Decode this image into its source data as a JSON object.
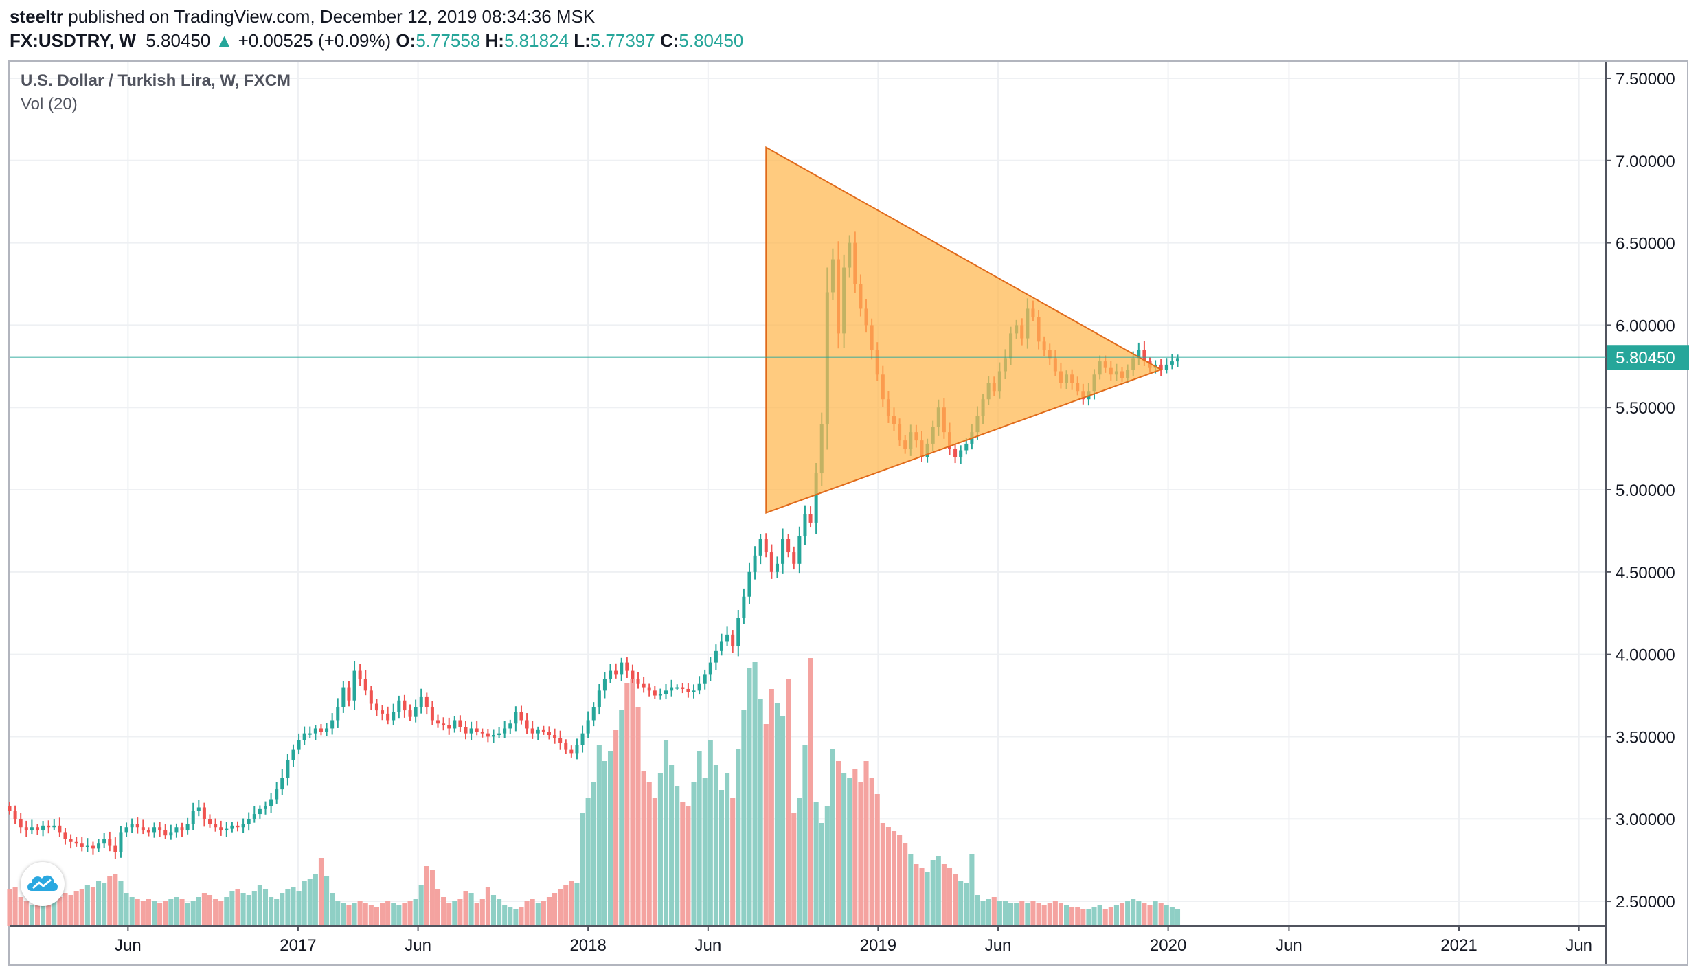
{
  "header": {
    "author": "steeltr",
    "published": " published on TradingView.com, December 12, 2019 08:34:36 MSK",
    "symbol": "FX:USDTRY, W",
    "last": "5.80450",
    "change": "+0.00525 (+0.09%)",
    "o_label": "O:",
    "o": "5.77558",
    "h_label": "H:",
    "h": "5.81824",
    "l_label": "L:",
    "l": "5.77397",
    "c_label": "C:",
    "c": "5.80450"
  },
  "legend": {
    "title": "U.S. Dollar / Turkish Lira, W, FXCM",
    "volume": "Vol (20)"
  },
  "colors": {
    "up": "#26a69a",
    "down": "#ef5350",
    "vol_up": "#8fcfc5",
    "vol_down": "#f4a3a0",
    "triangle_fill": "#ffb74d",
    "triangle_stroke": "#e06a1a",
    "price_line": "#26a69a"
  },
  "logo_icon": "tradingview-cloud-icon",
  "chart_data": {
    "type": "candlestick",
    "symbol": "FX:USDTRY",
    "interval": "W",
    "y_axis": {
      "min": 2.35,
      "max": 7.6,
      "ticks": [
        "7.50000",
        "7.00000",
        "6.50000",
        "6.00000",
        "5.50000",
        "5.00000",
        "4.50000",
        "4.00000",
        "3.50000",
        "3.00000",
        "2.50000"
      ],
      "tick_values": [
        7.5,
        7.0,
        6.5,
        6.0,
        5.5,
        5.0,
        4.5,
        4.0,
        3.5,
        3.0,
        2.5
      ],
      "last_price_label": "5.80450",
      "last_price": 5.8045
    },
    "x_axis": {
      "start": "2016-01-04",
      "end": "2021-07-05",
      "ticks": [
        {
          "label": "Jun",
          "date": "2016-06-01"
        },
        {
          "label": "2017",
          "date": "2017-01-01"
        },
        {
          "label": "Jun",
          "date": "2017-06-01"
        },
        {
          "label": "2018",
          "date": "2018-01-01"
        },
        {
          "label": "Jun",
          "date": "2018-06-01"
        },
        {
          "label": "2019",
          "date": "2019-01-01"
        },
        {
          "label": "Jun",
          "date": "2019-06-01"
        },
        {
          "label": "2020",
          "date": "2020-01-01"
        },
        {
          "label": "Jun",
          "date": "2020-06-01"
        },
        {
          "label": "2021",
          "date": "2021-01-01"
        },
        {
          "label": "Jun",
          "date": "2021-06-01"
        }
      ]
    },
    "series_start": "2016-01-04",
    "closes": [
      3.05,
      3.0,
      2.95,
      2.93,
      2.95,
      2.93,
      2.96,
      2.95,
      2.96,
      2.92,
      2.88,
      2.86,
      2.85,
      2.83,
      2.84,
      2.82,
      2.85,
      2.88,
      2.84,
      2.8,
      2.92,
      2.95,
      2.97,
      2.95,
      2.93,
      2.92,
      2.95,
      2.93,
      2.9,
      2.92,
      2.95,
      2.93,
      2.97,
      3.05,
      3.07,
      3.0,
      2.97,
      2.95,
      2.93,
      2.94,
      2.96,
      2.95,
      2.97,
      3.0,
      3.03,
      3.06,
      3.08,
      3.12,
      3.18,
      3.25,
      3.36,
      3.42,
      3.48,
      3.52,
      3.52,
      3.55,
      3.53,
      3.55,
      3.6,
      3.68,
      3.8,
      3.72,
      3.9,
      3.85,
      3.78,
      3.7,
      3.66,
      3.64,
      3.6,
      3.65,
      3.72,
      3.66,
      3.62,
      3.68,
      3.74,
      3.68,
      3.6,
      3.58,
      3.57,
      3.55,
      3.6,
      3.56,
      3.52,
      3.55,
      3.53,
      3.52,
      3.5,
      3.51,
      3.52,
      3.55,
      3.58,
      3.65,
      3.6,
      3.55,
      3.52,
      3.54,
      3.53,
      3.51,
      3.49,
      3.46,
      3.42,
      3.4,
      3.45,
      3.52,
      3.6,
      3.68,
      3.78,
      3.85,
      3.9,
      3.88,
      3.95,
      3.9,
      3.85,
      3.82,
      3.8,
      3.78,
      3.75,
      3.76,
      3.78,
      3.8,
      3.8,
      3.79,
      3.77,
      3.78,
      3.82,
      3.88,
      3.95,
      4.02,
      4.08,
      4.12,
      4.05,
      4.22,
      4.35,
      4.5,
      4.6,
      4.7,
      4.62,
      4.5,
      4.55,
      4.7,
      4.62,
      4.55,
      4.72,
      4.85,
      4.8,
      5.1,
      5.4,
      6.2,
      6.4,
      5.95,
      6.35,
      6.5,
      6.25,
      6.1,
      6.0,
      5.85,
      5.7,
      5.55,
      5.45,
      5.4,
      5.3,
      5.25,
      5.35,
      5.3,
      5.2,
      5.28,
      5.38,
      5.5,
      5.35,
      5.25,
      5.2,
      5.24,
      5.28,
      5.35,
      5.45,
      5.55,
      5.65,
      5.6,
      5.72,
      5.8,
      5.95,
      6.0,
      5.92,
      6.1,
      6.05,
      5.9,
      5.85,
      5.8,
      5.72,
      5.65,
      5.7,
      5.65,
      5.6,
      5.55,
      5.6,
      5.7,
      5.78,
      5.74,
      5.7,
      5.72,
      5.68,
      5.73,
      5.8,
      5.85,
      5.78,
      5.74,
      5.76,
      5.73,
      5.76,
      5.78,
      5.8
    ],
    "volume_scale": "relative",
    "volumes": [
      0.18,
      0.19,
      0.14,
      0.12,
      0.1,
      0.11,
      0.1,
      0.12,
      0.13,
      0.14,
      0.16,
      0.15,
      0.17,
      0.18,
      0.2,
      0.19,
      0.22,
      0.21,
      0.24,
      0.25,
      0.22,
      0.16,
      0.14,
      0.13,
      0.12,
      0.13,
      0.12,
      0.11,
      0.12,
      0.13,
      0.14,
      0.13,
      0.11,
      0.12,
      0.14,
      0.16,
      0.15,
      0.13,
      0.12,
      0.14,
      0.17,
      0.18,
      0.16,
      0.15,
      0.17,
      0.2,
      0.18,
      0.14,
      0.13,
      0.16,
      0.18,
      0.19,
      0.17,
      0.22,
      0.23,
      0.25,
      0.33,
      0.24,
      0.16,
      0.12,
      0.11,
      0.1,
      0.11,
      0.12,
      0.11,
      0.1,
      0.09,
      0.11,
      0.12,
      0.11,
      0.1,
      0.11,
      0.12,
      0.13,
      0.2,
      0.29,
      0.27,
      0.18,
      0.14,
      0.11,
      0.12,
      0.13,
      0.17,
      0.16,
      0.11,
      0.13,
      0.19,
      0.15,
      0.13,
      0.1,
      0.09,
      0.08,
      0.09,
      0.12,
      0.13,
      0.11,
      0.12,
      0.14,
      0.16,
      0.18,
      0.2,
      0.22,
      0.21,
      0.55,
      0.62,
      0.7,
      0.88,
      0.8,
      0.85,
      0.95,
      1.05,
      1.18,
      1.2,
      1.06,
      0.75,
      0.7,
      0.62,
      0.74,
      0.9,
      0.78,
      0.68,
      0.6,
      0.58,
      0.7,
      0.85,
      0.72,
      0.9,
      0.78,
      0.66,
      0.74,
      0.62,
      0.86,
      1.05,
      1.25,
      1.28,
      1.1,
      0.98,
      1.15,
      1.08,
      1.02,
      1.2,
      0.55,
      0.62,
      0.88,
      1.3,
      0.6,
      0.5,
      0.58,
      0.86,
      0.8,
      0.74,
      0.72,
      0.76,
      0.7,
      0.8,
      0.72,
      0.64,
      0.5,
      0.48,
      0.46,
      0.44,
      0.4,
      0.35,
      0.3,
      0.28,
      0.26,
      0.32,
      0.34,
      0.3,
      0.28,
      0.25,
      0.22,
      0.21,
      0.35,
      0.15,
      0.12,
      0.13,
      0.14,
      0.12,
      0.12,
      0.11,
      0.11,
      0.12,
      0.11,
      0.12,
      0.11,
      0.1,
      0.11,
      0.12,
      0.11,
      0.1,
      0.09,
      0.09,
      0.08,
      0.08,
      0.09,
      0.1,
      0.08,
      0.09,
      0.1,
      0.11,
      0.12,
      0.13,
      0.12,
      0.11,
      0.1,
      0.12,
      0.11,
      0.1,
      0.09,
      0.08
    ],
    "triangle": {
      "points": [
        {
          "date": "2018-08-13",
          "price": 7.08
        },
        {
          "date": "2018-08-13",
          "price": 4.86
        },
        {
          "date": "2019-12-23",
          "price": 5.73
        }
      ]
    }
  }
}
